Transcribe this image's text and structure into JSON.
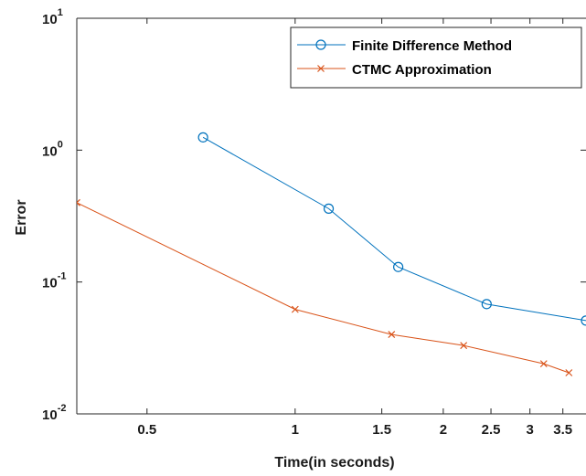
{
  "chart_data": {
    "type": "line",
    "xlabel": "Time(in seconds)",
    "ylabel": "Error",
    "x_scale": "log",
    "y_scale": "log",
    "xlim": [
      0.36,
      3.9
    ],
    "ylim": [
      0.01,
      10
    ],
    "x_ticks": [
      {
        "value": 0.5,
        "label": "0.5"
      },
      {
        "value": 1,
        "label": "1"
      },
      {
        "value": 1.5,
        "label": "1.5"
      },
      {
        "value": 2,
        "label": "2"
      },
      {
        "value": 2.5,
        "label": "2.5"
      },
      {
        "value": 3,
        "label": "3"
      },
      {
        "value": 3.5,
        "label": "3.5"
      }
    ],
    "y_ticks": [
      {
        "value": 0.01,
        "base": "10",
        "exp": "-2"
      },
      {
        "value": 0.1,
        "base": "10",
        "exp": "-1"
      },
      {
        "value": 1,
        "base": "10",
        "exp": "0"
      },
      {
        "value": 10,
        "base": "10",
        "exp": "1"
      }
    ],
    "grid": false,
    "legend_position": "top-right",
    "series": [
      {
        "name": "Finite Difference Method",
        "color": "#0072BD",
        "marker": "circle",
        "x": [
          0.65,
          1.17,
          1.62,
          2.45,
          3.9
        ],
        "y": [
          1.25,
          0.36,
          0.13,
          0.068,
          0.051
        ]
      },
      {
        "name": "CTMC Approximation",
        "color": "#D95319",
        "marker": "x",
        "x": [
          0.36,
          1.0,
          1.57,
          2.2,
          3.2,
          3.6
        ],
        "y": [
          0.4,
          0.062,
          0.04,
          0.033,
          0.024,
          0.0205
        ]
      }
    ]
  }
}
